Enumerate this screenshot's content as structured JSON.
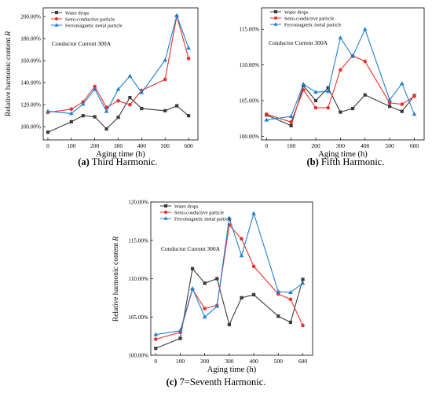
{
  "chart_data": [
    {
      "type": "line",
      "caption_letter": "(a)",
      "caption_rest": " Third Harmonic.",
      "annotation": "Conductor  Current  300A",
      "xlabel": "Aging time (h)",
      "ylabel_main": "Relative harmonic content ",
      "ylabel_var": "R",
      "x_ticks": [
        0,
        100,
        200,
        300,
        400,
        500,
        600
      ],
      "y_ticks": [
        100,
        120,
        140,
        160,
        180,
        200
      ],
      "y_tick_labels": [
        "100.00%",
        "120.00%",
        "140.00%",
        "160.00%",
        "180.00%",
        "200.00%"
      ],
      "xlim": [
        -20,
        640
      ],
      "ylim": [
        88,
        208
      ],
      "legend_position": "top-left",
      "x": [
        0,
        100,
        150,
        200,
        250,
        300,
        350,
        400,
        500,
        550,
        600
      ],
      "series": [
        {
          "name": "Water drops",
          "color": "#3a3a3a",
          "marker": "square",
          "values": [
            95,
            104.5,
            110,
            109,
            98,
            108.5,
            126.5,
            116.5,
            114.5,
            119,
            110
          ]
        },
        {
          "name": "Semi-conductive particle",
          "color": "#e8322e",
          "marker": "circle",
          "values": [
            113,
            116,
            122.5,
            136.5,
            117.5,
            123.5,
            120,
            133,
            143,
            200.5,
            162
          ]
        },
        {
          "name": "Ferromagnetic metal particle",
          "color": "#1f7fd0",
          "marker": "triangle",
          "values": [
            114,
            112,
            120.5,
            134,
            114,
            134,
            146,
            131,
            160.5,
            201,
            171.5
          ]
        }
      ]
    },
    {
      "type": "line",
      "caption_letter": "(b)",
      "caption_rest": " Fifth Harmonic.",
      "annotation": "Conductor  Current  300A",
      "xlabel": "Aging time (h)",
      "ylabel_main": "",
      "ylabel_var": "",
      "x_ticks": [
        0,
        100,
        200,
        300,
        400,
        500,
        600
      ],
      "y_ticks": [
        100,
        105,
        110,
        115
      ],
      "y_tick_labels": [
        "100.00%",
        "105.00%",
        "110.00%",
        "115.00%"
      ],
      "xlim": [
        -20,
        640
      ],
      "ylim": [
        99.5,
        118
      ],
      "legend_position": "top-left",
      "x": [
        0,
        100,
        150,
        200,
        250,
        300,
        350,
        400,
        500,
        550,
        600
      ],
      "series": [
        {
          "name": "Water drops",
          "color": "#3a3a3a",
          "marker": "square",
          "values": [
            103,
            101.5,
            107.1,
            105,
            106.8,
            103.4,
            103.9,
            105.8,
            104.2,
            103.5,
            105.7
          ]
        },
        {
          "name": "Semi-conductive particle",
          "color": "#e8322e",
          "marker": "circle",
          "values": [
            103.1,
            102,
            106.5,
            104,
            104,
            109.3,
            111.3,
            110.5,
            104.7,
            104.5,
            105.6
          ]
        },
        {
          "name": "Ferromagnetic metal particle",
          "color": "#1f7fd0",
          "marker": "triangle",
          "values": [
            102.3,
            102.8,
            107.3,
            106.2,
            106.3,
            113.8,
            111.2,
            115,
            105.1,
            107.4,
            103.1
          ]
        }
      ]
    },
    {
      "type": "line",
      "caption_letter": "(c)",
      "caption_rest": " 7=Seventh Harmonic.",
      "annotation": "Conductor  Current  300A",
      "xlabel": "Aging time (h)",
      "ylabel_main": "Relative harmonic content ",
      "ylabel_var": "R",
      "x_ticks": [
        0,
        100,
        200,
        300,
        400,
        500,
        600
      ],
      "y_ticks": [
        100,
        105,
        110,
        115,
        120
      ],
      "y_tick_labels": [
        "100.00%",
        "105.00%",
        "110.00%",
        "115.00%",
        "120.00%"
      ],
      "xlim": [
        -20,
        640
      ],
      "ylim": [
        100,
        120
      ],
      "legend_position": "top-left",
      "x": [
        0,
        100,
        150,
        200,
        250,
        300,
        350,
        400,
        500,
        550,
        600
      ],
      "series": [
        {
          "name": "Water drops",
          "color": "#3a3a3a",
          "marker": "square",
          "values": [
            100.9,
            102.2,
            111.3,
            109.4,
            110,
            104,
            107.5,
            107.9,
            105.1,
            104.3,
            109.9
          ]
        },
        {
          "name": "Semi-conductive particle",
          "color": "#e8322e",
          "marker": "circle",
          "values": [
            102.1,
            103,
            108.6,
            106.1,
            106.5,
            117,
            115.2,
            111.6,
            108,
            107.3,
            103.9
          ]
        },
        {
          "name": "Ferromagnetic metal particle",
          "color": "#1f7fd0",
          "marker": "triangle",
          "values": [
            102.7,
            103.2,
            108.7,
            105,
            106.4,
            117.9,
            113,
            118.5,
            108.3,
            108.2,
            109.4
          ]
        }
      ]
    }
  ]
}
